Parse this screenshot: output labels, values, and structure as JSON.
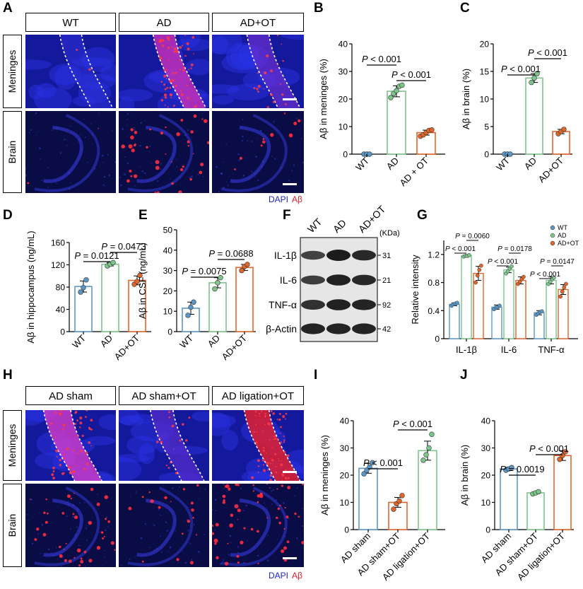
{
  "figure": {
    "panel_letters": [
      "A",
      "B",
      "C",
      "D",
      "E",
      "F",
      "G",
      "H",
      "I",
      "J"
    ],
    "colors": {
      "wt": "#5b97c6",
      "ad": "#7cc58b",
      "adot": "#e0652b",
      "dapi": "#1f24cf",
      "abeta": "#d8202a"
    }
  },
  "panelA": {
    "headers": [
      "WT",
      "AD",
      "AD+OT"
    ],
    "row_labels": [
      "Meninges",
      "Brain"
    ],
    "legend": {
      "dapi": "DAPI",
      "abeta": "Aβ"
    }
  },
  "panelH": {
    "headers": [
      "AD sham",
      "AD sham+OT",
      "AD ligation+OT"
    ],
    "row_labels": [
      "Meninges",
      "Brain"
    ],
    "legend": {
      "dapi": "DAPI",
      "abeta": "Aβ"
    }
  },
  "panelF": {
    "lanes": [
      "WT",
      "AD",
      "AD+OT"
    ],
    "unit": "(KDa)",
    "proteins": [
      {
        "name": "IL-1β",
        "kda": "31"
      },
      {
        "name": "IL-6",
        "kda": "21"
      },
      {
        "name": "TNF-α",
        "kda": "92"
      },
      {
        "name": "β-Actin",
        "kda": "42"
      }
    ]
  },
  "chart_data": [
    {
      "panel": "B",
      "type": "bar",
      "title": "",
      "ylabel": "Aβ in meninges (%)",
      "xlabel": "",
      "categories": [
        "WT",
        "AD",
        "AD + OT"
      ],
      "values": [
        0,
        22.8,
        7.8
      ],
      "errors": [
        0.2,
        2.0,
        0.9
      ],
      "points": [
        [
          0,
          0,
          0
        ],
        [
          20.5,
          22.0,
          23.0,
          24.6,
          25.0
        ],
        [
          6.5,
          7.0,
          7.8,
          8.6,
          8.8
        ]
      ],
      "ylim": [
        0,
        40
      ],
      "yticks": [
        "0",
        "10",
        "20",
        "30",
        "40"
      ],
      "annotations": [
        {
          "from": 0,
          "to": 1,
          "text": "P < 0.001"
        },
        {
          "from": 1,
          "to": 2,
          "text": "P < 0.001"
        }
      ]
    },
    {
      "panel": "C",
      "type": "bar",
      "title": "",
      "ylabel": "Aβ in brain (%)",
      "xlabel": "",
      "categories": [
        "WT",
        "AD",
        "AD+OT"
      ],
      "values": [
        0,
        13.8,
        4.1
      ],
      "errors": [
        0.1,
        0.8,
        0.4
      ],
      "points": [
        [
          0,
          0,
          0
        ],
        [
          13.0,
          13.8,
          14.6
        ],
        [
          3.7,
          4.1,
          4.5
        ]
      ],
      "ylim": [
        0,
        20
      ],
      "yticks": [
        "0",
        "5",
        "10",
        "15",
        "20"
      ],
      "annotations": [
        {
          "from": 0,
          "to": 1,
          "text": "P < 0.001"
        },
        {
          "from": 1,
          "to": 2,
          "text": "P < 0.001"
        }
      ]
    },
    {
      "panel": "D",
      "type": "bar",
      "title": "",
      "ylabel": "Aβ in hippocampus (ng/mL)",
      "xlabel": "",
      "categories": [
        "WT",
        "AD",
        "AD+OT"
      ],
      "values": [
        81,
        121,
        92
      ],
      "errors": [
        10,
        3,
        8
      ],
      "points": [
        [
          71,
          79,
          93
        ],
        [
          118,
          121,
          124
        ],
        [
          85,
          90,
          101
        ]
      ],
      "ylim": [
        0,
        160
      ],
      "yticks": [
        "0",
        "40",
        "80",
        "120",
        "160"
      ],
      "annotations": [
        {
          "from": 0,
          "to": 1,
          "text": "P = 0.0121"
        },
        {
          "from": 1,
          "to": 2,
          "text": "P = 0.0473"
        }
      ]
    },
    {
      "panel": "E",
      "type": "bar",
      "title": "",
      "ylabel": "Aβ in CSF (ng/mL)",
      "xlabel": "",
      "categories": [
        "WT",
        "AD",
        "AD+OT"
      ],
      "values": [
        11.5,
        24,
        31.5
      ],
      "errors": [
        3,
        2.5,
        1.5
      ],
      "points": [
        [
          8,
          12,
          14.5
        ],
        [
          21,
          24,
          26.5
        ],
        [
          30,
          32,
          33
        ]
      ],
      "ylim": [
        0,
        50
      ],
      "yticks": [
        "0",
        "10",
        "20",
        "30",
        "40",
        "50"
      ],
      "annotations": [
        {
          "from": 0,
          "to": 1,
          "text": "P = 0.0075"
        },
        {
          "from": 1,
          "to": 2,
          "text": "P = 0.0688"
        }
      ]
    },
    {
      "panel": "G",
      "type": "bar",
      "title": "",
      "ylabel": "Relative intensity",
      "xlabel": "",
      "categories": [
        "IL-1β",
        "IL-6",
        "TNF-α"
      ],
      "series": [
        {
          "name": "WT",
          "values": [
            0.49,
            0.45,
            0.37
          ],
          "errors": [
            0.02,
            0.03,
            0.03
          ],
          "points": [
            [
              0.47,
              0.49,
              0.5,
              0.51
            ],
            [
              0.42,
              0.44,
              0.45,
              0.47
            ],
            [
              0.34,
              0.36,
              0.38,
              0.39
            ]
          ]
        },
        {
          "name": "AD",
          "values": [
            1.18,
            0.98,
            0.83
          ],
          "errors": [
            0.01,
            0.04,
            0.05
          ],
          "points": [
            [
              1.17,
              1.18,
              1.18,
              1.19
            ],
            [
              0.93,
              0.96,
              1.0,
              1.03
            ],
            [
              0.78,
              0.81,
              0.85,
              0.87
            ]
          ]
        },
        {
          "name": "AD+OT",
          "values": [
            0.93,
            0.83,
            0.7
          ],
          "errors": [
            0.1,
            0.05,
            0.07
          ],
          "points": [
            [
              0.8,
              0.9,
              0.98,
              1.04
            ],
            [
              0.78,
              0.81,
              0.85,
              0.88
            ],
            [
              0.6,
              0.67,
              0.73,
              0.78
            ]
          ]
        }
      ],
      "ylim": [
        0,
        1.4
      ],
      "yticks": [
        "0",
        "0.4",
        "0.8",
        "1.2"
      ],
      "legend": "top-right",
      "annotations": [
        {
          "group": 0,
          "from": 0,
          "to": 1,
          "text": "P < 0.001"
        },
        {
          "group": 0,
          "from": 1,
          "to": 2,
          "text": "P = 0.0060"
        },
        {
          "group": 1,
          "from": 0,
          "to": 1,
          "text": "P < 0.001"
        },
        {
          "group": 1,
          "from": 1,
          "to": 2,
          "text": "P = 0.0178"
        },
        {
          "group": 2,
          "from": 0,
          "to": 1,
          "text": "P < 0.001"
        },
        {
          "group": 2,
          "from": 1,
          "to": 2,
          "text": "P = 0.0147"
        }
      ]
    },
    {
      "panel": "I",
      "type": "bar",
      "title": "",
      "ylabel": "Aβ in meninges (%)",
      "xlabel": "",
      "categories": [
        "AD sham",
        "AD sham+OT",
        "AD ligation+OT"
      ],
      "values": [
        22.5,
        10,
        29
      ],
      "errors": [
        1.8,
        1.8,
        3.5
      ],
      "points": [
        [
          20.5,
          21.8,
          23.0,
          24.6
        ],
        [
          7.5,
          9.5,
          10.5,
          12.5
        ],
        [
          25.5,
          27.5,
          30.0,
          35.0
        ]
      ],
      "ylim": [
        0,
        40
      ],
      "yticks": [
        "0",
        "10",
        "20",
        "30",
        "40"
      ],
      "annotations": [
        {
          "from": 0,
          "to": 1,
          "text": "P < 0.001"
        },
        {
          "from": 1,
          "to": 2,
          "text": "P < 0.001"
        }
      ]
    },
    {
      "panel": "J",
      "type": "bar",
      "title": "",
      "ylabel": "Aβ in brain (%)",
      "xlabel": "",
      "categories": [
        "AD sham",
        "AD sham+OT",
        "AD ligation+OT"
      ],
      "values": [
        22.3,
        13.5,
        27.2
      ],
      "errors": [
        0.6,
        0.4,
        1.8
      ],
      "points": [
        [
          21.8,
          22.3,
          22.8
        ],
        [
          13.1,
          13.5,
          13.9
        ],
        [
          25.8,
          27.2,
          28.6
        ]
      ],
      "ylim": [
        0,
        40
      ],
      "yticks": [
        "0",
        "10",
        "20",
        "30",
        "40"
      ],
      "annotations": [
        {
          "from": 0,
          "to": 1,
          "text": "P = 0.0019"
        },
        {
          "from": 1,
          "to": 2,
          "text": "P < 0.001"
        }
      ]
    }
  ]
}
